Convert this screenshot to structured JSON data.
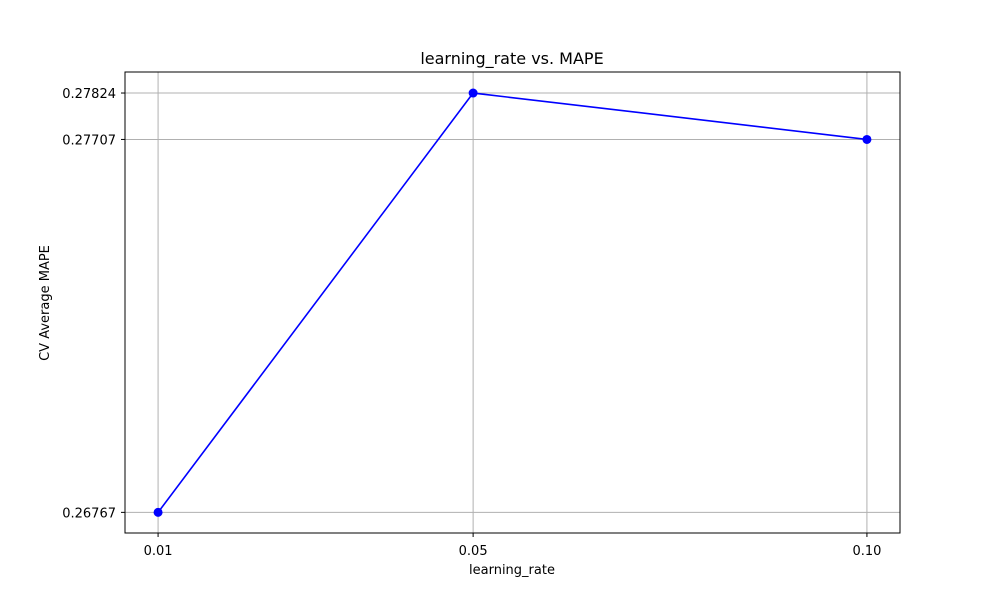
{
  "chart_data": {
    "type": "line",
    "title": "learning_rate vs. MAPE",
    "xlabel": "learning_rate",
    "ylabel": "CV Average MAPE",
    "x": [
      0.01,
      0.05,
      0.1
    ],
    "x_tick_labels": [
      "0.01",
      "0.05",
      "0.10"
    ],
    "series": [
      {
        "values": [
          0.26767,
          0.27824,
          0.27707
        ],
        "color": "#0000ff",
        "marker": "circle"
      }
    ],
    "y_ticks": [
      0.26767,
      0.27707,
      0.27824
    ],
    "y_tick_labels": [
      "0.26767",
      "0.27707",
      "0.27824"
    ],
    "xlim": [
      0.0058,
      0.1042
    ],
    "ylim": [
      0.26715,
      0.27877
    ],
    "grid": true,
    "grid_color": "#b0b0b0",
    "axes_color": "#000000"
  }
}
